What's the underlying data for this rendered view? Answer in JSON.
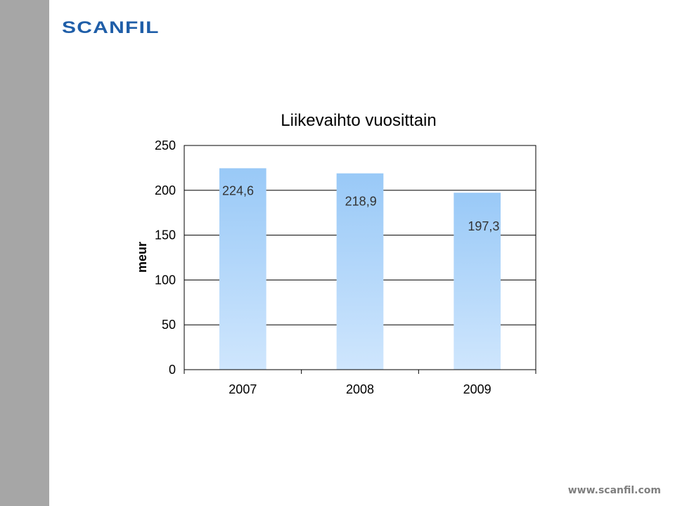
{
  "header": {
    "logo_text": "SCANFIL"
  },
  "footer": {
    "website": "www.scanfil.com"
  },
  "colors": {
    "left_band": "#a6a6a6",
    "logo": "#1f5ea8",
    "bar_top": "#99c9f7",
    "bar_bottom": "#cfe6fd"
  },
  "chart_data": {
    "type": "bar",
    "title": "Liikevaihto vuosittain",
    "xlabel": "",
    "ylabel": "meur",
    "categories": [
      "2007",
      "2008",
      "2009"
    ],
    "values": [
      224.6,
      218.9,
      197.3
    ],
    "value_labels": [
      "224,6",
      "218,9",
      "197,3"
    ],
    "ylim": [
      0,
      250
    ],
    "yticks": [
      0,
      50,
      100,
      150,
      200,
      250
    ],
    "grid": true,
    "legend": "none"
  }
}
